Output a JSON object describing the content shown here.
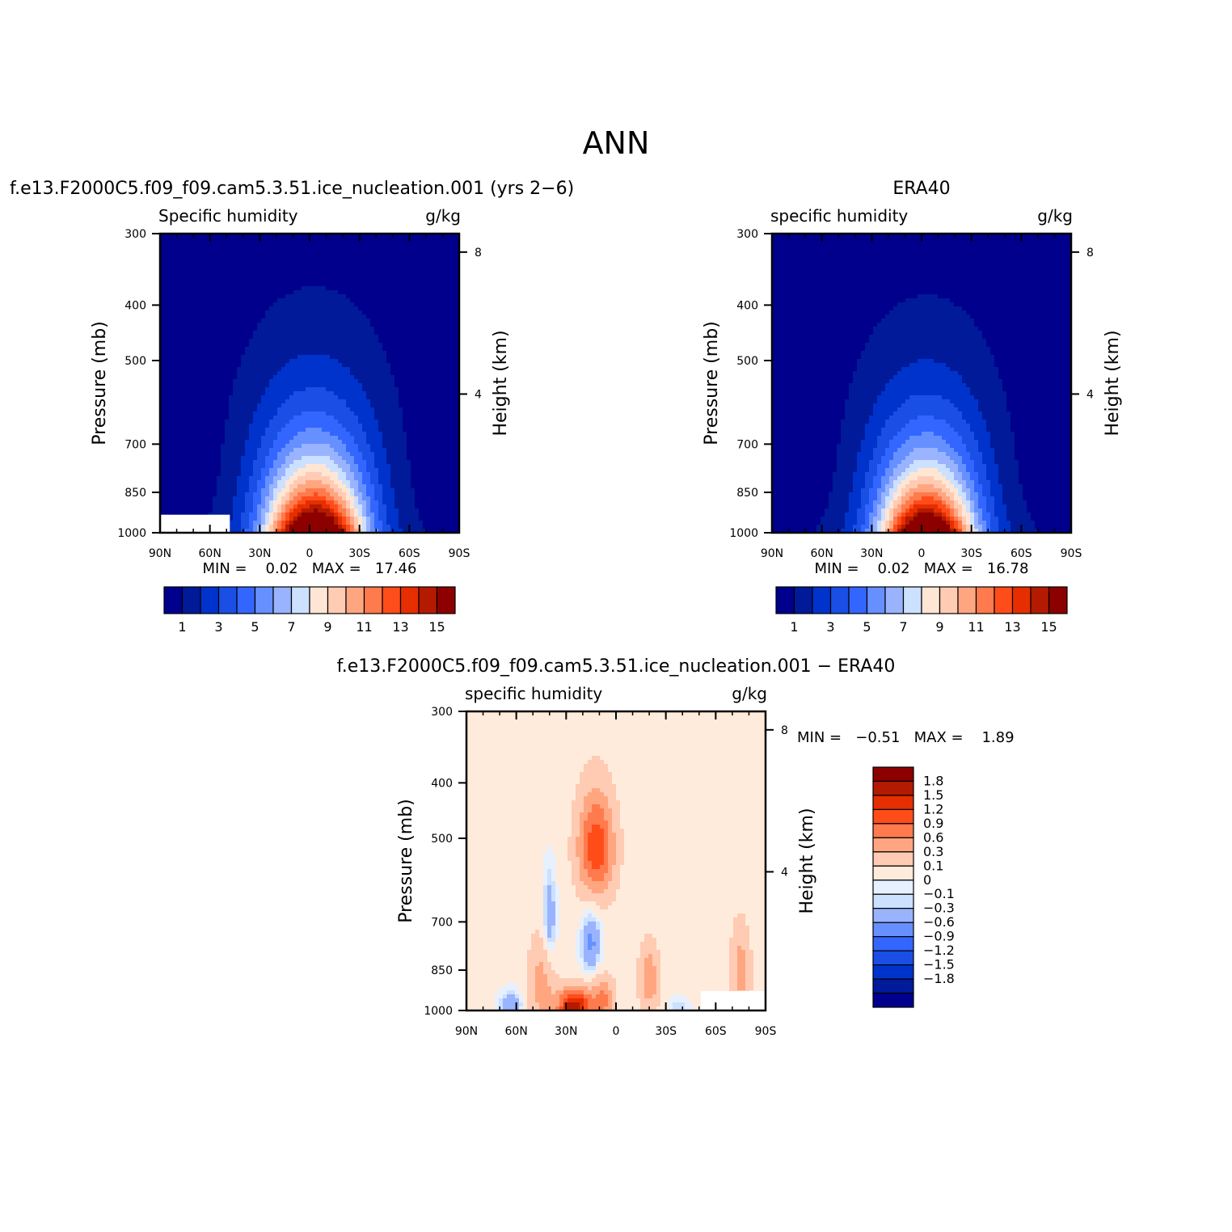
{
  "figure": {
    "title": "ANN"
  },
  "colors": {
    "abs_scale": [
      "#00008c",
      "#001a99",
      "#0033cc",
      "#1a4fe6",
      "#3366ff",
      "#6690ff",
      "#99b3ff",
      "#cce0ff",
      "#ffe6d4",
      "#ffcbb3",
      "#ffa680",
      "#ff7a4d",
      "#ff4d1a",
      "#e62e00",
      "#b31a00",
      "#8c0000"
    ],
    "diff_scale": [
      "#00008c",
      "#001a99",
      "#0033cc",
      "#1a4fe6",
      "#3366ff",
      "#6690ff",
      "#99b3ff",
      "#cce0ff",
      "#e6f0ff",
      "#ffebdc",
      "#ffcbb3",
      "#ffa680",
      "#ff7a4d",
      "#ff4d1a",
      "#e62e00",
      "#b31a00",
      "#8c0000"
    ]
  },
  "chart_data": [
    {
      "type": "heatmap",
      "panel": "model",
      "title": "f.e13.F2000C5.f09_f09.cam5.3.51.ice_nucleation.001 (yrs 2−6)",
      "left_label": "Specific humidity",
      "units": "g/kg",
      "ylabel": "Pressure (mb)",
      "ylabel_right": "Height (km)",
      "x_ticks": [
        "90N",
        "60N",
        "30N",
        "0",
        "30S",
        "60S",
        "90S"
      ],
      "y_ticks": [
        "300",
        "400",
        "500",
        "700",
        "850",
        "1000"
      ],
      "y_right_ticks": [
        "8",
        "4"
      ],
      "min_text": "MIN =    0.02   MAX =   17.46",
      "min": 0.02,
      "max": 17.46,
      "colorbar_labels": [
        "1",
        "3",
        "5",
        "7",
        "9",
        "11",
        "13",
        "15"
      ],
      "levels": [
        1,
        2,
        3,
        4,
        5,
        6,
        7,
        8,
        9,
        10,
        11,
        12,
        13,
        14,
        15
      ],
      "field": {
        "peak": 17.46,
        "center_lat": -3,
        "width_lat": 28,
        "scale_height_km": 2.15,
        "background": 0.3,
        "lat": [
          -90,
          -60,
          -30,
          0,
          30,
          60,
          90
        ],
        "pressure_mb": [
          1000,
          850,
          700,
          500,
          400,
          300
        ]
      },
      "missing_region": {
        "lat_from": 48,
        "lat_to": 90,
        "p_from": 930,
        "p_to": 1000
      }
    },
    {
      "type": "heatmap",
      "panel": "obs",
      "title": "ERA40",
      "left_label": "specific humidity",
      "units": "g/kg",
      "ylabel": "Pressure (mb)",
      "ylabel_right": "Height (km)",
      "x_ticks": [
        "90N",
        "60N",
        "30N",
        "0",
        "30S",
        "60S",
        "90S"
      ],
      "y_ticks": [
        "300",
        "400",
        "500",
        "700",
        "850",
        "1000"
      ],
      "y_right_ticks": [
        "8",
        "4"
      ],
      "min_text": "MIN =    0.02   MAX =   16.78",
      "min": 0.02,
      "max": 16.78,
      "colorbar_labels": [
        "1",
        "3",
        "5",
        "7",
        "9",
        "11",
        "13",
        "15"
      ],
      "levels": [
        1,
        2,
        3,
        4,
        5,
        6,
        7,
        8,
        9,
        10,
        11,
        12,
        13,
        14,
        15
      ],
      "field": {
        "peak": 16.78,
        "center_lat": -3,
        "width_lat": 27,
        "scale_height_km": 2.1,
        "background": 0.3,
        "lat": [
          -90,
          -60,
          -30,
          0,
          30,
          60,
          90
        ],
        "pressure_mb": [
          1000,
          850,
          700,
          500,
          400,
          300
        ]
      }
    },
    {
      "type": "heatmap",
      "panel": "difference",
      "title": "f.e13.F2000C5.f09_f09.cam5.3.51.ice_nucleation.001 − ERA40",
      "left_label": "specific humidity",
      "units": "g/kg",
      "ylabel": "Pressure (mb)",
      "ylabel_right": "Height (km)",
      "x_ticks": [
        "90N",
        "60N",
        "30N",
        "0",
        "30S",
        "60S",
        "90S"
      ],
      "y_ticks": [
        "300",
        "400",
        "500",
        "700",
        "850",
        "1000"
      ],
      "y_right_ticks": [
        "8",
        "4"
      ],
      "min_text": "MIN =   −0.51   MAX =    1.89",
      "min": -0.51,
      "max": 1.89,
      "colorbar_labels": [
        "1.8",
        "1.5",
        "1.2",
        "0.9",
        "0.6",
        "0.3",
        "0.1",
        "0",
        "−0.1",
        "−0.3",
        "−0.6",
        "−0.9",
        "−1.2",
        "−1.5",
        "−1.8"
      ],
      "levels": [
        -1.8,
        -1.5,
        -1.2,
        -0.9,
        -0.6,
        -0.3,
        -0.1,
        0,
        0.1,
        0.3,
        0.6,
        0.9,
        1.2,
        1.5,
        1.8
      ],
      "anomalies": [
        {
          "lat": 12,
          "p": 520,
          "amp": 1.3,
          "slat": 11,
          "sp": 110
        },
        {
          "lat": 25,
          "p": 990,
          "amp": 1.9,
          "slat": 10,
          "sp": 75
        },
        {
          "lat": 8,
          "p": 960,
          "amp": 0.8,
          "slat": 7,
          "sp": 90
        },
        {
          "lat": 45,
          "p": 900,
          "amp": 0.6,
          "slat": 8,
          "sp": 160
        },
        {
          "lat": -20,
          "p": 880,
          "amp": 0.7,
          "slat": 6,
          "sp": 120
        },
        {
          "lat": -75,
          "p": 850,
          "amp": 0.6,
          "slat": 6,
          "sp": 150
        },
        {
          "lat": 40,
          "p": 700,
          "amp": -0.45,
          "slat": 4,
          "sp": 130
        },
        {
          "lat": 15,
          "p": 760,
          "amp": -0.5,
          "slat": 6,
          "sp": 110
        },
        {
          "lat": 63,
          "p": 980,
          "amp": -0.4,
          "slat": 7,
          "sp": 60
        },
        {
          "lat": -38,
          "p": 990,
          "amp": -0.25,
          "slat": 6,
          "sp": 40
        }
      ],
      "background": 0.15,
      "missing_region": {
        "lat_from": -51,
        "lat_to": -90,
        "p_from": 925,
        "p_to": 1000
      }
    }
  ]
}
